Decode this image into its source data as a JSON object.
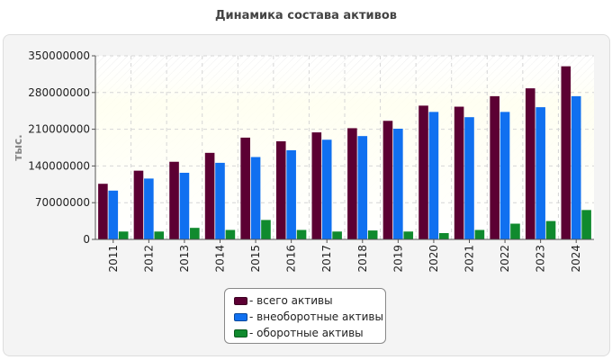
{
  "title": "Динамика состава активов",
  "chart_data": {
    "type": "bar",
    "title": "Динамика состава активов",
    "xlabel": "",
    "ylabel": "тыс.",
    "ylim": [
      0,
      350000000
    ],
    "yticks": [
      "0",
      "70000000",
      "140000000",
      "210000000",
      "280000000",
      "350000000"
    ],
    "grid": true,
    "legend_position": "bottom",
    "categories": [
      "2011",
      "2012",
      "2013",
      "2014",
      "2015",
      "2016",
      "2017",
      "2018",
      "2019",
      "2020",
      "2021",
      "2022",
      "2023",
      "2024"
    ],
    "series": [
      {
        "name": "- всего активы",
        "color": "#5c0033",
        "values": [
          106000000,
          131000000,
          148000000,
          165000000,
          194000000,
          187000000,
          204000000,
          212000000,
          226000000,
          255000000,
          253000000,
          273000000,
          288000000,
          330000000
        ]
      },
      {
        "name": "- внеоборотные активы",
        "color": "#1070f0",
        "values": [
          93000000,
          116000000,
          127000000,
          146000000,
          157000000,
          170000000,
          190000000,
          197000000,
          211000000,
          243000000,
          233000000,
          243000000,
          252000000,
          273000000
        ]
      },
      {
        "name": "- оборотные активы",
        "color": "#108a2e",
        "values": [
          15000000,
          15000000,
          22000000,
          18000000,
          37000000,
          18000000,
          15000000,
          17000000,
          15000000,
          12000000,
          18000000,
          30000000,
          35000000,
          56000000
        ]
      }
    ]
  }
}
